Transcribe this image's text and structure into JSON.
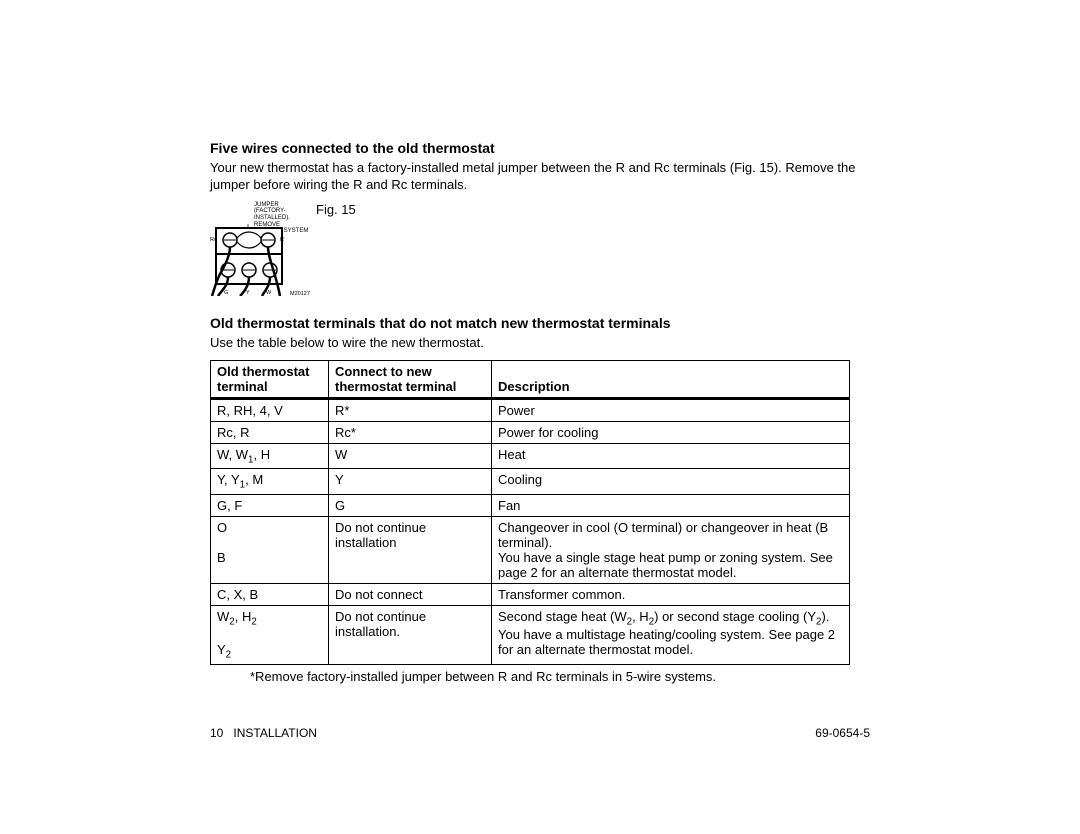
{
  "section1": {
    "title": "Five wires connected to the old thermostat",
    "body": "Your new thermostat has a factory-installed metal jumper between the R and Rc terminals (Fig. 15).  Remove the jumper before wiring the R and Rc terminals."
  },
  "figure": {
    "caption": "Fig. 15",
    "jumper_note_l1": "JUMPER (FACTORY-",
    "jumper_note_l2": "INSTALLED). REMOVE",
    "jumper_note_l3": "IF 5-WIRE SYSTEM",
    "code": "M20127",
    "labels": {
      "rc": "Rc",
      "r": "R",
      "g": "G",
      "y": "Y",
      "w": "W"
    },
    "colors": {
      "stroke": "#000000",
      "fill": "#ffffff"
    }
  },
  "section2": {
    "title": "Old thermostat terminals that do not match new thermostat terminals",
    "body": "Use the table below to wire the new thermostat."
  },
  "table": {
    "headers": {
      "col1_l1": "Old thermostat",
      "col1_l2": "terminal",
      "col2_l1": "Connect to new",
      "col2_l2": "thermostat terminal",
      "col3": "Description"
    },
    "rows": [
      {
        "old": "R, RH, 4, V",
        "new": "R*",
        "desc": "Power"
      },
      {
        "old": "Rc, R",
        "new": "Rc*",
        "desc": "Power for cooling"
      },
      {
        "old_html": "W, W<sub>1</sub>, H",
        "new": "W",
        "desc": "Heat"
      },
      {
        "old_html": "Y, Y<sub>1</sub>, M",
        "new": "Y",
        "desc": "Cooling"
      },
      {
        "old": "G, F",
        "new": "G",
        "desc": "Fan"
      }
    ],
    "row_ob": {
      "old_o": "O",
      "old_b": "B",
      "new_l1": "Do not continue",
      "new_l2": "installation",
      "desc_l1": "Changeover in cool (O terminal) or changeover in heat (B terminal).",
      "desc_l2": "You have a single stage heat pump or zoning system.  See page 2 for an alternate thermostat model."
    },
    "row_cxb": {
      "old": "C, X, B",
      "new": "Do not connect",
      "desc": "Transformer common."
    },
    "row_multi": {
      "old_l1_html": "W<sub>2</sub>, H<sub>2</sub>",
      "old_l2_html": "Y<sub>2</sub>",
      "new_l1": "Do not continue",
      "new_l2": "installation.",
      "desc_l1_html": "Second stage heat (W<sub>2</sub>, H<sub>2</sub>) or second stage cooling (Y<sub>2</sub>).",
      "desc_l2": "You have a multistage heating/cooling system.  See page 2 for an alternate thermostat model."
    },
    "footnote": "*Remove factory-installed jumper between R and Rc terminals in 5-wire systems."
  },
  "footer": {
    "page_number": "10",
    "section": "INSTALLATION",
    "doc_number": "69-0654-5"
  }
}
